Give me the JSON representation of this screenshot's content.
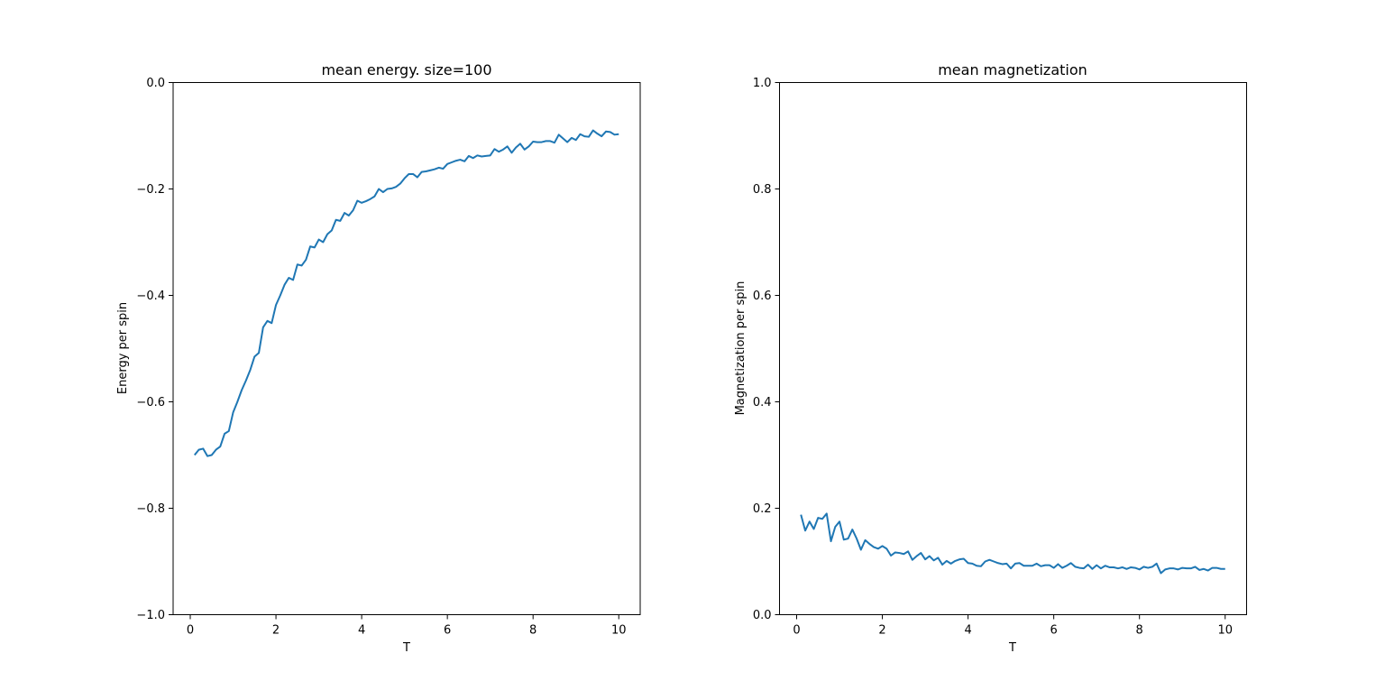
{
  "chart_data": [
    {
      "type": "line",
      "title": "mean energy. size=100",
      "xlabel": "T",
      "ylabel": "Energy per spin",
      "xlim": [
        -0.4,
        10.5
      ],
      "ylim": [
        -1.0,
        0.0
      ],
      "xticks": [
        0,
        2,
        4,
        6,
        8,
        10
      ],
      "xtick_labels": [
        "0",
        "2",
        "4",
        "6",
        "8",
        "10"
      ],
      "yticks": [
        -1.0,
        -0.8,
        -0.6,
        -0.4,
        -0.2,
        0.0
      ],
      "ytick_labels": [
        "−1.0",
        "−0.8",
        "−0.6",
        "−0.4",
        "−0.2",
        "0.0"
      ],
      "grid": false,
      "color": "#1f77b4",
      "series": [
        {
          "x": [
            0.1,
            0.2,
            0.3,
            0.4,
            0.5,
            0.6,
            0.7,
            0.8,
            0.9,
            1.0,
            1.1,
            1.2,
            1.3,
            1.4,
            1.5,
            1.6,
            1.7,
            1.8,
            1.9,
            2.0,
            2.1,
            2.2,
            2.3,
            2.4,
            2.5,
            2.6,
            2.7,
            2.8,
            2.9,
            3.0,
            3.1,
            3.2,
            3.3,
            3.4,
            3.5,
            3.6,
            3.7,
            3.8,
            3.9,
            4.0,
            4.1,
            4.2,
            4.3,
            4.4,
            4.5,
            4.6,
            4.7,
            4.8,
            4.9,
            5.0,
            5.1,
            5.2,
            5.3,
            5.4,
            5.5,
            5.6,
            5.7,
            5.8,
            5.9,
            6.0,
            6.1,
            6.2,
            6.3,
            6.4,
            6.5,
            6.6,
            6.7,
            6.8,
            6.9,
            7.0,
            7.1,
            7.2,
            7.3,
            7.4,
            7.5,
            7.6,
            7.7,
            7.8,
            7.9,
            8.0,
            8.1,
            8.2,
            8.3,
            8.4,
            8.5,
            8.6,
            8.7,
            8.8,
            8.9,
            9.0,
            9.1,
            9.2,
            9.3,
            9.4,
            9.5,
            9.6,
            9.7,
            9.8,
            9.9,
            10.0
          ],
          "y": [
            -0.7,
            -0.69,
            -0.688,
            -0.702,
            -0.7,
            -0.69,
            -0.684,
            -0.66,
            -0.655,
            -0.62,
            -0.6,
            -0.578,
            -0.56,
            -0.54,
            -0.515,
            -0.508,
            -0.46,
            -0.448,
            -0.452,
            -0.418,
            -0.4,
            -0.38,
            -0.367,
            -0.371,
            -0.342,
            -0.344,
            -0.333,
            -0.308,
            -0.31,
            -0.295,
            -0.3,
            -0.285,
            -0.278,
            -0.258,
            -0.26,
            -0.245,
            -0.25,
            -0.24,
            -0.222,
            -0.226,
            -0.223,
            -0.219,
            -0.214,
            -0.2,
            -0.206,
            -0.2,
            -0.199,
            -0.196,
            -0.19,
            -0.18,
            -0.172,
            -0.172,
            -0.178,
            -0.168,
            -0.167,
            -0.165,
            -0.163,
            -0.16,
            -0.162,
            -0.153,
            -0.15,
            -0.147,
            -0.145,
            -0.148,
            -0.138,
            -0.142,
            -0.137,
            -0.139,
            -0.138,
            -0.137,
            -0.125,
            -0.13,
            -0.126,
            -0.12,
            -0.132,
            -0.122,
            -0.115,
            -0.126,
            -0.12,
            -0.111,
            -0.112,
            -0.112,
            -0.11,
            -0.11,
            -0.113,
            -0.098,
            -0.105,
            -0.112,
            -0.104,
            -0.108,
            -0.097,
            -0.101,
            -0.102,
            -0.09,
            -0.096,
            -0.101,
            -0.092,
            -0.093,
            -0.098,
            -0.097
          ]
        }
      ]
    },
    {
      "type": "line",
      "title": "mean magnetization",
      "xlabel": "T",
      "ylabel": "Magnetization per spin",
      "xlim": [
        -0.4,
        10.5
      ],
      "ylim": [
        0.0,
        1.0
      ],
      "xticks": [
        0,
        2,
        4,
        6,
        8,
        10
      ],
      "xtick_labels": [
        "0",
        "2",
        "4",
        "6",
        "8",
        "10"
      ],
      "yticks": [
        0.0,
        0.2,
        0.4,
        0.6,
        0.8,
        1.0
      ],
      "ytick_labels": [
        "0.0",
        "0.2",
        "0.4",
        "0.6",
        "0.8",
        "1.0"
      ],
      "grid": false,
      "color": "#1f77b4",
      "series": [
        {
          "x": [
            0.1,
            0.2,
            0.3,
            0.4,
            0.5,
            0.6,
            0.7,
            0.8,
            0.9,
            1.0,
            1.1,
            1.2,
            1.3,
            1.4,
            1.5,
            1.6,
            1.7,
            1.8,
            1.9,
            2.0,
            2.1,
            2.2,
            2.3,
            2.4,
            2.5,
            2.6,
            2.7,
            2.8,
            2.9,
            3.0,
            3.1,
            3.2,
            3.3,
            3.4,
            3.5,
            3.6,
            3.7,
            3.8,
            3.9,
            4.0,
            4.1,
            4.2,
            4.3,
            4.4,
            4.5,
            4.6,
            4.7,
            4.8,
            4.9,
            5.0,
            5.1,
            5.2,
            5.3,
            5.4,
            5.5,
            5.6,
            5.7,
            5.8,
            5.9,
            6.0,
            6.1,
            6.2,
            6.3,
            6.4,
            6.5,
            6.6,
            6.7,
            6.8,
            6.9,
            7.0,
            7.1,
            7.2,
            7.3,
            7.4,
            7.5,
            7.6,
            7.7,
            7.8,
            7.9,
            8.0,
            8.1,
            8.2,
            8.3,
            8.4,
            8.5,
            8.6,
            8.7,
            8.8,
            8.9,
            9.0,
            9.1,
            9.2,
            9.3,
            9.4,
            9.5,
            9.6,
            9.7,
            9.8,
            9.9,
            10.0
          ],
          "y": [
            0.188,
            0.158,
            0.175,
            0.161,
            0.182,
            0.18,
            0.19,
            0.138,
            0.165,
            0.175,
            0.141,
            0.143,
            0.16,
            0.143,
            0.122,
            0.14,
            0.133,
            0.127,
            0.124,
            0.129,
            0.124,
            0.111,
            0.117,
            0.116,
            0.114,
            0.119,
            0.103,
            0.11,
            0.116,
            0.104,
            0.11,
            0.102,
            0.107,
            0.094,
            0.101,
            0.096,
            0.101,
            0.104,
            0.105,
            0.097,
            0.096,
            0.092,
            0.091,
            0.1,
            0.103,
            0.1,
            0.097,
            0.095,
            0.096,
            0.087,
            0.096,
            0.097,
            0.092,
            0.092,
            0.092,
            0.096,
            0.091,
            0.093,
            0.093,
            0.088,
            0.095,
            0.088,
            0.092,
            0.097,
            0.09,
            0.088,
            0.087,
            0.094,
            0.086,
            0.093,
            0.087,
            0.092,
            0.089,
            0.089,
            0.087,
            0.089,
            0.086,
            0.089,
            0.088,
            0.085,
            0.09,
            0.088,
            0.09,
            0.096,
            0.078,
            0.085,
            0.087,
            0.087,
            0.085,
            0.088,
            0.087,
            0.087,
            0.09,
            0.084,
            0.086,
            0.083,
            0.088,
            0.088,
            0.086,
            0.086
          ]
        }
      ]
    }
  ]
}
